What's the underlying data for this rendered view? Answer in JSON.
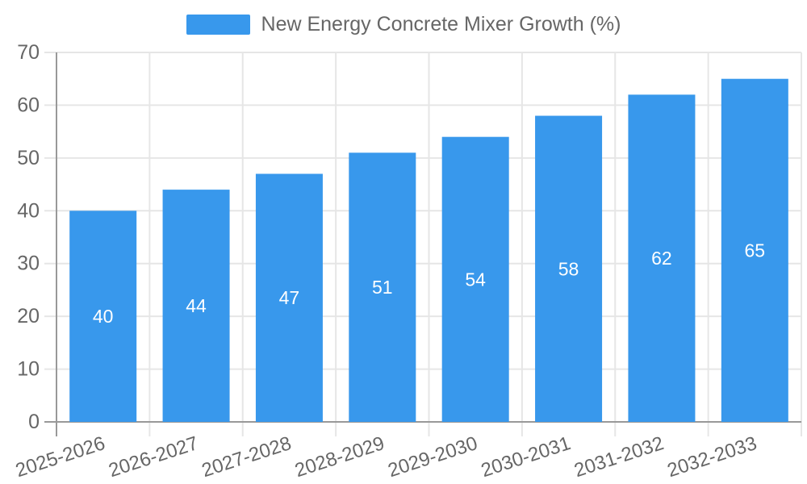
{
  "legend": {
    "label": "New Energy Concrete Mixer Growth (%)"
  },
  "chart_data": {
    "type": "bar",
    "title": "",
    "xlabel": "",
    "ylabel": "",
    "categories": [
      "2025-2026",
      "2026-2027",
      "2027-2028",
      "2028-2029",
      "2029-2030",
      "2030-2031",
      "2031-2032",
      "2032-2033"
    ],
    "series": [
      {
        "name": "New Energy Concrete Mixer Growth (%)",
        "values": [
          40,
          44,
          47,
          51,
          54,
          58,
          62,
          65
        ]
      }
    ],
    "yticks": [
      0,
      10,
      20,
      30,
      40,
      50,
      60,
      70
    ],
    "ylim": [
      0,
      70
    ],
    "grid": true,
    "legend_position": "top-center",
    "x_label_rotation_deg": -18,
    "colors": {
      "bar": "#3898EC",
      "bar_value_label": "#FFFFFF",
      "axis_text": "#666666",
      "axis_line": "#999999",
      "gridline": "#E6E6E6"
    }
  }
}
